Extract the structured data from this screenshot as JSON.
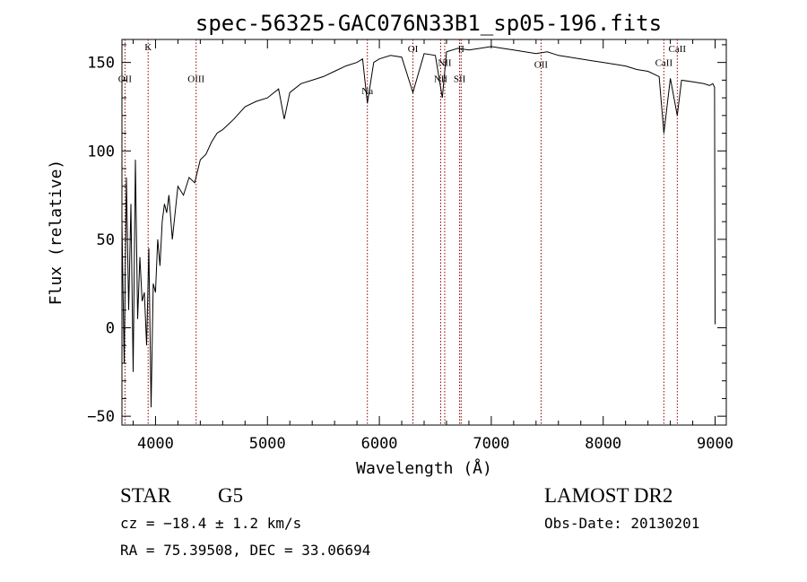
{
  "chart_data": {
    "type": "line",
    "title": "spec-56325-GAC076N33B1_sp05-196.fits",
    "xlabel": "Wavelength (Å)",
    "ylabel": "Flux (relative)",
    "xlim": [
      3700,
      9100
    ],
    "ylim": [
      -55,
      163
    ],
    "xticks": [
      4000,
      5000,
      6000,
      7000,
      8000,
      9000
    ],
    "yticks": [
      -50,
      0,
      50,
      100,
      150
    ],
    "grid": false,
    "line_color": "#000000",
    "marker_color": "#8b0000",
    "lines": [
      {
        "label": "OII",
        "x": 3727,
        "label_y": 139
      },
      {
        "label": "K",
        "x": 3934,
        "label_y": 157
      },
      {
        "label": "OIII",
        "x": 4363,
        "label_y": 139
      },
      {
        "label": "Na",
        "x": 5893,
        "label_y": 132
      },
      {
        "label": "OI",
        "x": 6300,
        "label_y": 156
      },
      {
        "label": "NII",
        "x": 6548,
        "label_y": 139
      },
      {
        "label": "NII",
        "x": 6584,
        "label_y": 148
      },
      {
        "label": "SII",
        "x": 6717,
        "label_y": 139
      },
      {
        "label": "II",
        "x": 6731,
        "label_y": 156
      },
      {
        "label": "OII",
        "x": 7445,
        "label_y": 147
      },
      {
        "label": "CaII",
        "x": 8542,
        "label_y": 148
      },
      {
        "label": "CaII",
        "x": 8662,
        "label_y": 156
      }
    ],
    "spectrum": {
      "x": [
        3700,
        3720,
        3740,
        3760,
        3780,
        3800,
        3820,
        3840,
        3860,
        3880,
        3900,
        3920,
        3940,
        3960,
        3980,
        4000,
        4020,
        4040,
        4060,
        4080,
        4100,
        4120,
        4150,
        4200,
        4250,
        4300,
        4350,
        4400,
        4450,
        4500,
        4550,
        4600,
        4650,
        4700,
        4800,
        4900,
        5000,
        5100,
        5150,
        5200,
        5300,
        5400,
        5500,
        5600,
        5700,
        5800,
        5850,
        5893,
        5950,
        6000,
        6100,
        6200,
        6300,
        6400,
        6500,
        6563,
        6600,
        6700,
        6800,
        6900,
        7000,
        7100,
        7200,
        7300,
        7400,
        7500,
        7600,
        7700,
        7800,
        7900,
        8000,
        8100,
        8200,
        8300,
        8400,
        8500,
        8542,
        8600,
        8662,
        8700,
        8800,
        8900,
        8950,
        8980,
        8995,
        9000
      ],
      "y": [
        60,
        -20,
        85,
        10,
        70,
        -25,
        95,
        5,
        40,
        15,
        20,
        -10,
        45,
        -45,
        25,
        20,
        50,
        35,
        60,
        70,
        65,
        75,
        50,
        80,
        75,
        85,
        82,
        95,
        98,
        105,
        110,
        112,
        115,
        118,
        125,
        128,
        130,
        135,
        118,
        133,
        138,
        140,
        142,
        145,
        148,
        150,
        152,
        127,
        150,
        152,
        154,
        153,
        133,
        155,
        154,
        130,
        156,
        158,
        157,
        158,
        159,
        158,
        157,
        156,
        155,
        156,
        154,
        153,
        152,
        151,
        150,
        149,
        148,
        146,
        145,
        142,
        110,
        141,
        120,
        140,
        139,
        138,
        137,
        138,
        136,
        2
      ]
    },
    "footer": {
      "object_class": "STAR",
      "subclass": "G5",
      "cz": "cz = −18.4 ± 1.2 km/s",
      "coords": "RA =  75.39508, DEC =  33.06694",
      "survey": "LAMOST DR2",
      "obs_date": "Obs-Date: 20130201"
    }
  }
}
